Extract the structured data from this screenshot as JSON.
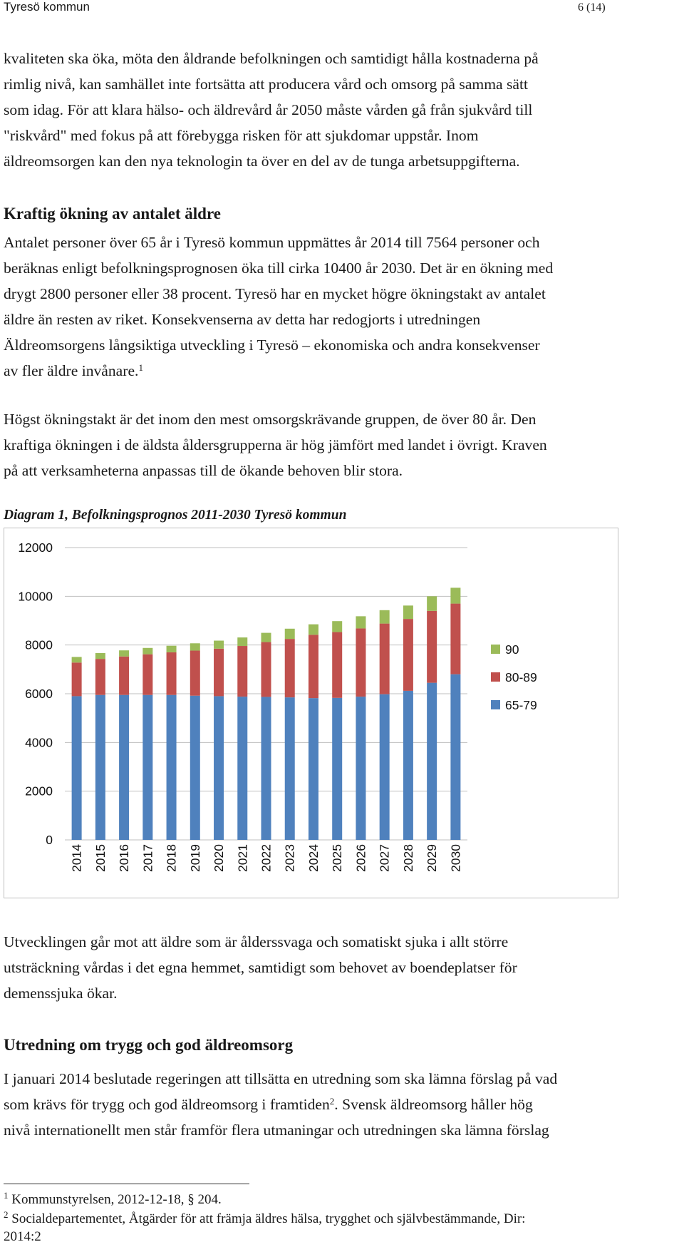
{
  "header": {
    "org": "Tyresö kommun",
    "page_num": "6 (14)"
  },
  "intro": {
    "lines": [
      "kvaliteten ska öka, möta den åldrande befolkningen och samtidigt hålla kostnaderna på",
      "rimlig nivå, kan samhället inte fortsätta att producera vård och omsorg på samma sätt",
      "som idag. För att klara hälso- och äldrevård år 2050 måste vården gå från sjukvård till",
      "\"riskvård\" med fokus på att förebygga risken för att sjukdomar uppstår. Inom",
      "äldreomsorgen kan den nya teknologin ta över en del av de tunga arbetsuppgifterna."
    ]
  },
  "section1": {
    "heading": "Kraftig ökning av antalet äldre",
    "p1_lines": [
      "Antalet personer över 65 år i Tyresö kommun uppmättes år 2014 till 7564 personer och",
      "beräknas enligt befolkningsprognosen öka till cirka 10400 år 2030. Det är en ökning med",
      "drygt 2800 personer eller 38 procent. Tyresö har en mycket högre ökningstakt av antalet",
      "äldre än resten av riket. Konsekvenserna av detta har redogjorts i utredningen",
      "Äldreomsorgens långsiktiga utveckling i Tyresö  – ekonomiska och andra konsekvenser"
    ],
    "p1_last": "av fler äldre invånare.",
    "p1_footnote_ref": "1",
    "p2_lines": [
      "Högst ökningstakt är det inom den mest omsorgskrävande gruppen, de över 80 år. Den",
      "kraftiga ökningen i de äldsta åldersgrupperna är hög jämfört med landet i övrigt. Kraven",
      "på att verksamheterna anpassas till de ökande behoven blir stora."
    ]
  },
  "diagram_title": "Diagram 1, Befolkningsprognos 2011-2030 Tyresö kommun",
  "chart_data": {
    "type": "bar",
    "stacked": true,
    "title": "",
    "xlabel": "",
    "ylabel": "",
    "categories": [
      "2014",
      "2015",
      "2016",
      "2017",
      "2018",
      "2019",
      "2020",
      "2021",
      "2022",
      "2023",
      "2024",
      "2025",
      "2026",
      "2027",
      "2028",
      "2029",
      "2030"
    ],
    "series": [
      {
        "name": "65-79",
        "color": "#4f81bd",
        "values": [
          5900,
          5950,
          5950,
          5950,
          5950,
          5920,
          5900,
          5880,
          5870,
          5850,
          5820,
          5830,
          5880,
          5980,
          6120,
          6450,
          6800
        ]
      },
      {
        "name": "80-89",
        "color": "#c0504d",
        "values": [
          1380,
          1480,
          1580,
          1670,
          1750,
          1850,
          1950,
          2080,
          2250,
          2400,
          2600,
          2700,
          2800,
          2900,
          2950,
          2950,
          2900
        ]
      },
      {
        "name": "90",
        "color": "#9bbb59",
        "values": [
          230,
          240,
          250,
          260,
          270,
          300,
          330,
          350,
          380,
          420,
          430,
          450,
          500,
          550,
          550,
          600,
          650
        ]
      }
    ],
    "yticks": [
      "0",
      "2000",
      "4000",
      "6000",
      "8000",
      "10000",
      "12000"
    ],
    "ylim": [
      0,
      12000
    ],
    "legend_order": [
      "90",
      "80-89",
      "65-79"
    ],
    "legend_position": "right",
    "grid": true
  },
  "section1b": {
    "lines": [
      "Utvecklingen går mot att äldre som är ålderssvaga och somatiskt sjuka i allt större",
      "utsträckning vårdas i det egna hemmet, samtidigt som behovet av boendeplatser för",
      "demenssjuka ökar."
    ]
  },
  "section2": {
    "heading": "Utredning om trygg och god äldreomsorg",
    "line1": "I januari 2014 beslutade regeringen att tillsätta en utredning som ska lämna förslag på vad",
    "line2a": "som krävs för trygg och god äldreomsorg i framtiden",
    "line2_ref": "2",
    "line2b": ". Svensk äldreomsorg håller hög",
    "line3": "nivå internationellt men står framför flera utmaningar och utredningen ska lämna förslag"
  },
  "footnotes": {
    "n1_num": "1",
    "n1_text": " Kommunstyrelsen, 2012-12-18, § 204.",
    "n2_num": "2",
    "n2_text": " Socialdepartementet, Åtgärder för att främja äldres hälsa, trygghet och självbestämmande, Dir:",
    "n2_cont": "2014:2"
  }
}
